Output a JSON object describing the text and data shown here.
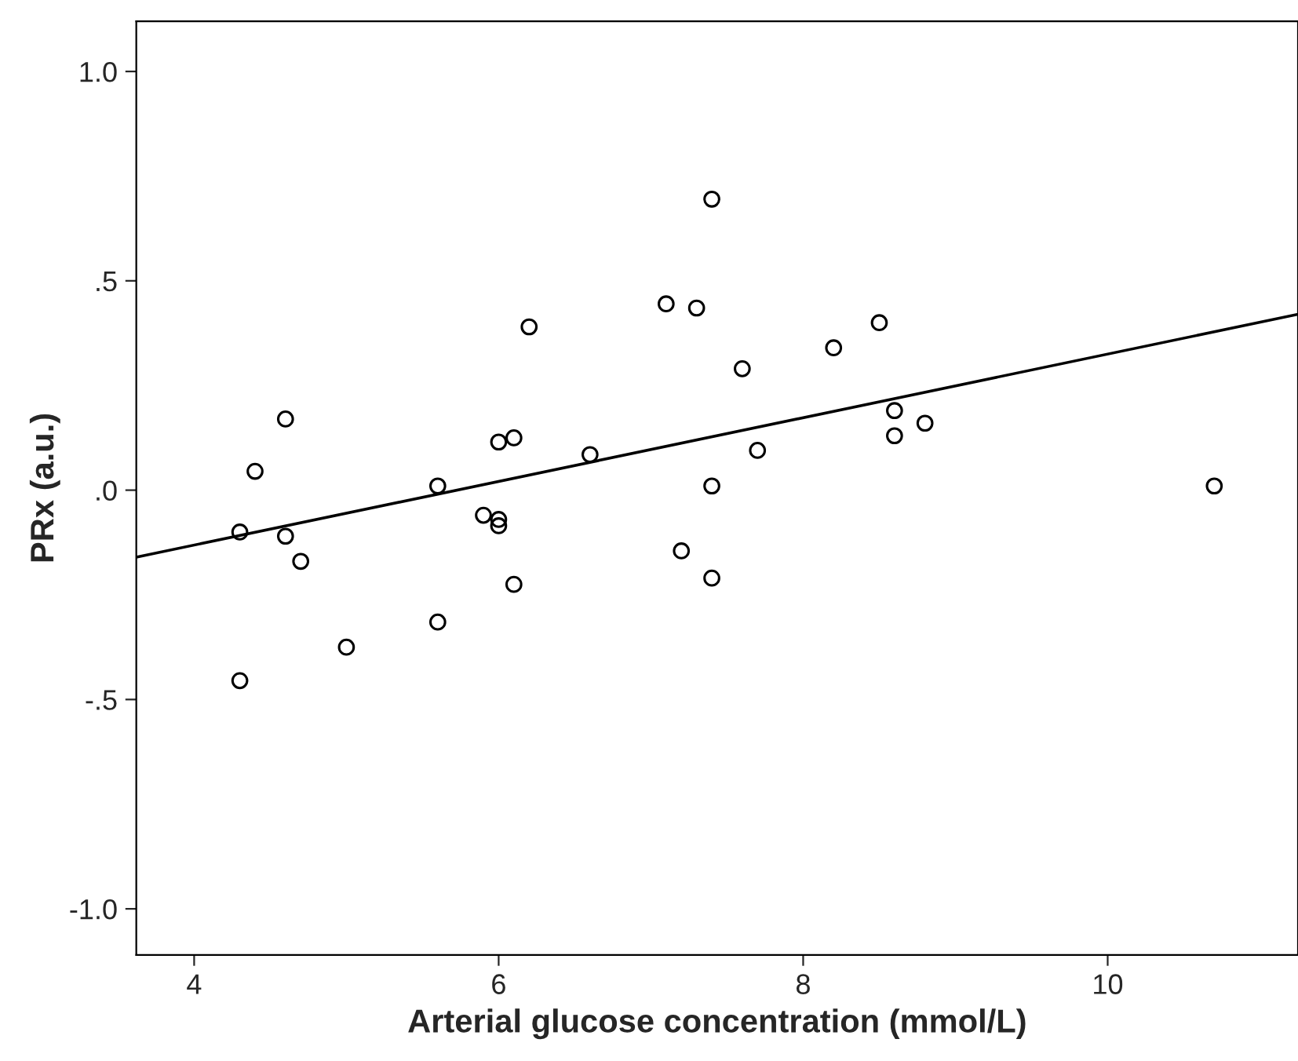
{
  "chart_data": {
    "type": "scatter",
    "xlabel": "Arterial glucose concentration (mmol/L)",
    "ylabel": "PRx (a.u.)",
    "xlim": [
      3.62,
      11.25
    ],
    "ylim": [
      -1.11,
      1.12
    ],
    "xticks": [
      4,
      6,
      8,
      10
    ],
    "yticks": [
      {
        "value": 1.0,
        "label": "1.0"
      },
      {
        "value": 0.5,
        "label": ".5"
      },
      {
        "value": 0.0,
        "label": ".0"
      },
      {
        "value": -0.5,
        "label": "-.5"
      },
      {
        "value": -1.0,
        "label": "-1.0"
      }
    ],
    "grid": false,
    "legend": false,
    "series": [
      {
        "marker": "circle",
        "color": "#000000",
        "x": [
          4.3,
          4.4,
          4.6,
          4.6,
          4.7,
          4.3,
          5.0,
          5.6,
          5.6,
          5.9,
          6.0,
          6.0,
          6.0,
          6.1,
          6.1,
          6.2,
          6.6,
          7.1,
          7.3,
          7.4,
          7.4,
          7.4,
          7.2,
          7.6,
          7.7,
          8.2,
          8.5,
          8.6,
          8.6,
          8.8,
          10.7
        ],
        "values": [
          -0.1,
          0.045,
          0.17,
          -0.11,
          -0.17,
          -0.455,
          -0.375,
          0.01,
          -0.315,
          -0.06,
          -0.07,
          -0.085,
          0.115,
          0.125,
          -0.225,
          0.39,
          0.085,
          0.445,
          0.435,
          0.695,
          0.01,
          -0.21,
          -0.145,
          0.29,
          0.095,
          0.34,
          0.4,
          0.19,
          0.13,
          0.16,
          0.01
        ]
      },
      {
        "type": "line",
        "marker": "none",
        "line_style": "solid",
        "color": "#000000",
        "x": [
          3.62,
          11.25
        ],
        "values": [
          -0.16,
          0.42
        ]
      }
    ]
  }
}
